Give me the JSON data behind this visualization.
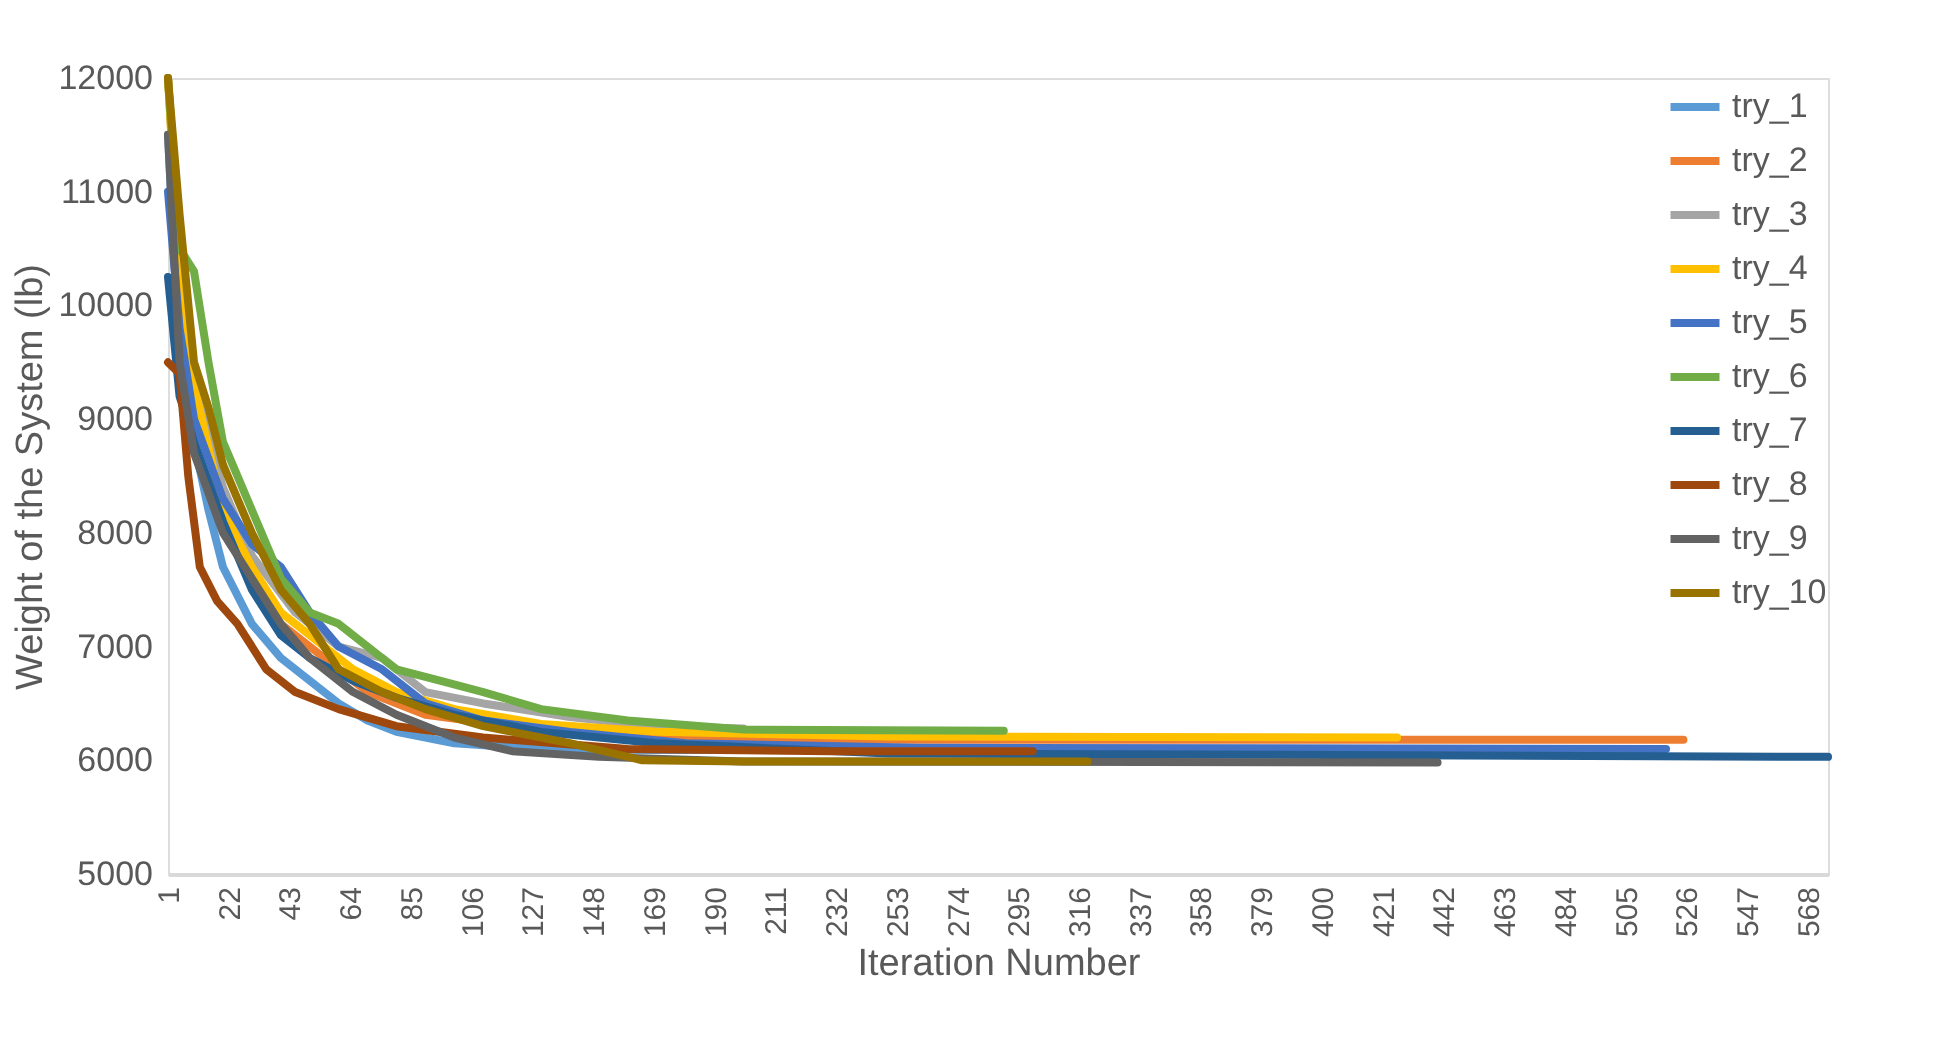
{
  "chart_data": {
    "type": "line",
    "xlabel": "Iteration Number",
    "ylabel": "Weight of the System (lb)",
    "xlim": [
      1,
      575
    ],
    "xticks": [
      1,
      22,
      43,
      64,
      85,
      106,
      127,
      148,
      169,
      190,
      211,
      232,
      253,
      274,
      295,
      316,
      337,
      358,
      379,
      400,
      421,
      442,
      463,
      484,
      505,
      526,
      547,
      568
    ],
    "ylim": [
      5000,
      12000
    ],
    "yticks": [
      5000,
      6000,
      7000,
      8000,
      9000,
      10000,
      11000,
      12000
    ],
    "grid": false,
    "legend": "top right",
    "line_style": "solid",
    "marker": "none",
    "series": [
      {
        "name": "try_1",
        "color": "#5b9bd5",
        "x": [
          1,
          5,
          10,
          15,
          20,
          30,
          40,
          50,
          60,
          70,
          80,
          100,
          130,
          170,
          250
        ],
        "values": [
          11500,
          9500,
          8800,
          8200,
          7700,
          7200,
          6900,
          6700,
          6500,
          6350,
          6250,
          6150,
          6100,
          6090,
          6090
        ]
      },
      {
        "name": "try_2",
        "color": "#ed7d31",
        "x": [
          1,
          5,
          10,
          20,
          30,
          40,
          55,
          70,
          90,
          120,
          160,
          220,
          525
        ],
        "values": [
          12000,
          10500,
          9200,
          8300,
          7600,
          7200,
          6900,
          6600,
          6400,
          6300,
          6220,
          6180,
          6180
        ]
      },
      {
        "name": "try_3",
        "color": "#a5a5a5",
        "x": [
          1,
          5,
          10,
          20,
          30,
          45,
          60,
          75,
          90,
          110,
          140,
          170,
          200
        ],
        "values": [
          12000,
          10300,
          9300,
          8400,
          7800,
          7300,
          7000,
          6900,
          6600,
          6500,
          6380,
          6300,
          6280
        ]
      },
      {
        "name": "try_4",
        "color": "#ffc000",
        "x": [
          1,
          5,
          10,
          20,
          30,
          40,
          50,
          65,
          80,
          100,
          130,
          170,
          250,
          426
        ],
        "values": [
          12000,
          10200,
          9300,
          8200,
          7700,
          7300,
          7100,
          6800,
          6600,
          6450,
          6320,
          6250,
          6210,
          6200
        ]
      },
      {
        "name": "try_5",
        "color": "#4472c4",
        "x": [
          1,
          5,
          10,
          20,
          30,
          40,
          50,
          60,
          75,
          90,
          110,
          140,
          180,
          260,
          519
        ],
        "values": [
          11000,
          9800,
          9000,
          8300,
          7900,
          7700,
          7300,
          7000,
          6800,
          6500,
          6350,
          6250,
          6150,
          6110,
          6100
        ]
      },
      {
        "name": "try_6",
        "color": "#70ad47",
        "x": [
          1,
          5,
          10,
          15,
          20,
          30,
          40,
          50,
          60,
          70,
          80,
          95,
          110,
          130,
          160,
          200,
          290
        ],
        "values": [
          12000,
          10500,
          10300,
          9500,
          8800,
          8200,
          7600,
          7300,
          7200,
          7000,
          6800,
          6700,
          6600,
          6450,
          6350,
          6270,
          6260
        ]
      },
      {
        "name": "try_7",
        "color": "#255e91",
        "x": [
          1,
          5,
          10,
          20,
          30,
          40,
          50,
          65,
          80,
          100,
          130,
          170,
          250,
          575
        ],
        "values": [
          10250,
          9200,
          8800,
          8100,
          7500,
          7100,
          6900,
          6700,
          6550,
          6400,
          6250,
          6150,
          6060,
          6030
        ]
      },
      {
        "name": "try_8",
        "color": "#9e480e",
        "x": [
          1,
          5,
          8,
          12,
          18,
          25,
          35,
          45,
          60,
          80,
          110,
          160,
          230,
          300
        ],
        "values": [
          9500,
          9400,
          8500,
          7700,
          7400,
          7200,
          6800,
          6600,
          6450,
          6300,
          6200,
          6100,
          6080,
          6080
        ]
      },
      {
        "name": "try_9",
        "color": "#636363",
        "x": [
          1,
          5,
          10,
          20,
          30,
          40,
          50,
          65,
          80,
          100,
          120,
          150,
          200,
          440
        ],
        "values": [
          11500,
          9500,
          8700,
          8000,
          7600,
          7200,
          6900,
          6600,
          6400,
          6200,
          6080,
          6030,
          5990,
          5980
        ]
      },
      {
        "name": "try_10",
        "color": "#997300",
        "x": [
          1,
          5,
          10,
          15,
          20,
          30,
          40,
          50,
          60,
          75,
          90,
          110,
          140,
          165,
          200,
          319
        ],
        "values": [
          12000,
          10800,
          9500,
          9100,
          8600,
          8000,
          7500,
          7200,
          6800,
          6600,
          6450,
          6300,
          6150,
          6000,
          5990,
          5990
        ]
      }
    ]
  }
}
